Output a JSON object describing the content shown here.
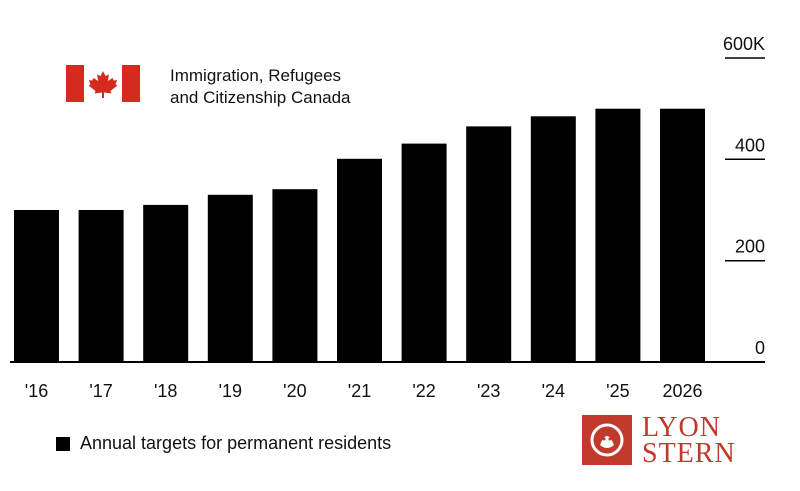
{
  "chart_data": {
    "type": "bar",
    "categories": [
      "'16",
      "'17",
      "'18",
      "'19",
      "'20",
      "'21",
      "'22",
      "'23",
      "'24",
      "'25",
      "2026"
    ],
    "values": [
      300,
      300,
      310,
      330,
      341,
      401,
      431,
      465,
      485,
      500,
      500
    ],
    "ylim": [
      0,
      600
    ],
    "yticks": [
      {
        "value": 0,
        "label": "0"
      },
      {
        "value": 200,
        "label": "200"
      },
      {
        "value": 400,
        "label": "400"
      },
      {
        "value": 600,
        "label": "600K"
      }
    ],
    "legend": "Annual targets for permanent residents",
    "legend_position": "bottom-left",
    "bar_color": "#000000",
    "grid": false
  },
  "header": {
    "line1": "Immigration, Refugees",
    "line2": "and Citizenship Canada",
    "flag_icon": "canada-flag-icon",
    "flag_color": "#d52b1e"
  },
  "brand": {
    "line1": "LYON",
    "line2": "STERN",
    "logo_icon": "lion-head-icon",
    "color": "#c0392b"
  }
}
